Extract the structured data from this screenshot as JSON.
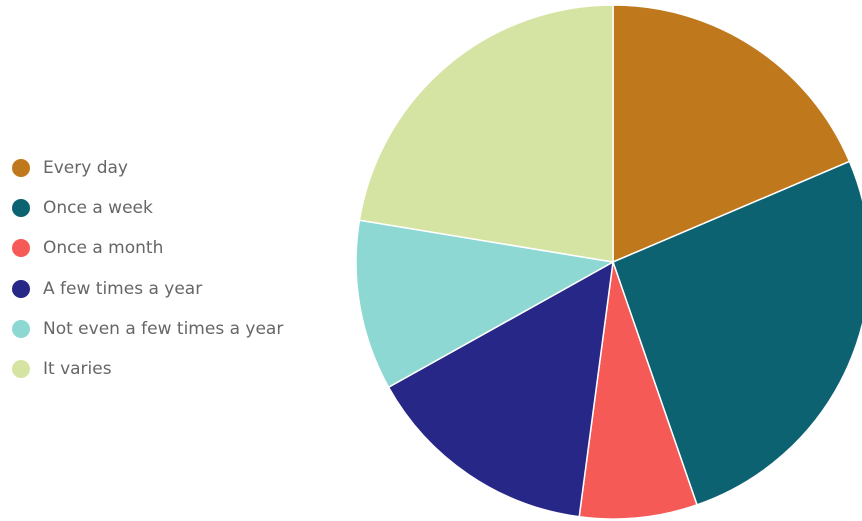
{
  "chart_data": {
    "type": "pie",
    "title": "",
    "legend_position": "left",
    "start_angle_deg": 0,
    "direction": "clockwise",
    "slices": [
      {
        "label": "Every day",
        "value": 18.6,
        "color": "#C0781C"
      },
      {
        "label": "Once a week",
        "value": 26.1,
        "color": "#0C6270"
      },
      {
        "label": "Once a month",
        "value": 7.4,
        "color": "#F65A57"
      },
      {
        "label": "A few times a year",
        "value": 14.8,
        "color": "#272788"
      },
      {
        "label": "Not even a few times a year",
        "value": 10.7,
        "color": "#8ED8D4"
      },
      {
        "label": "It varies",
        "value": 22.4,
        "color": "#D6E4A3"
      }
    ]
  }
}
